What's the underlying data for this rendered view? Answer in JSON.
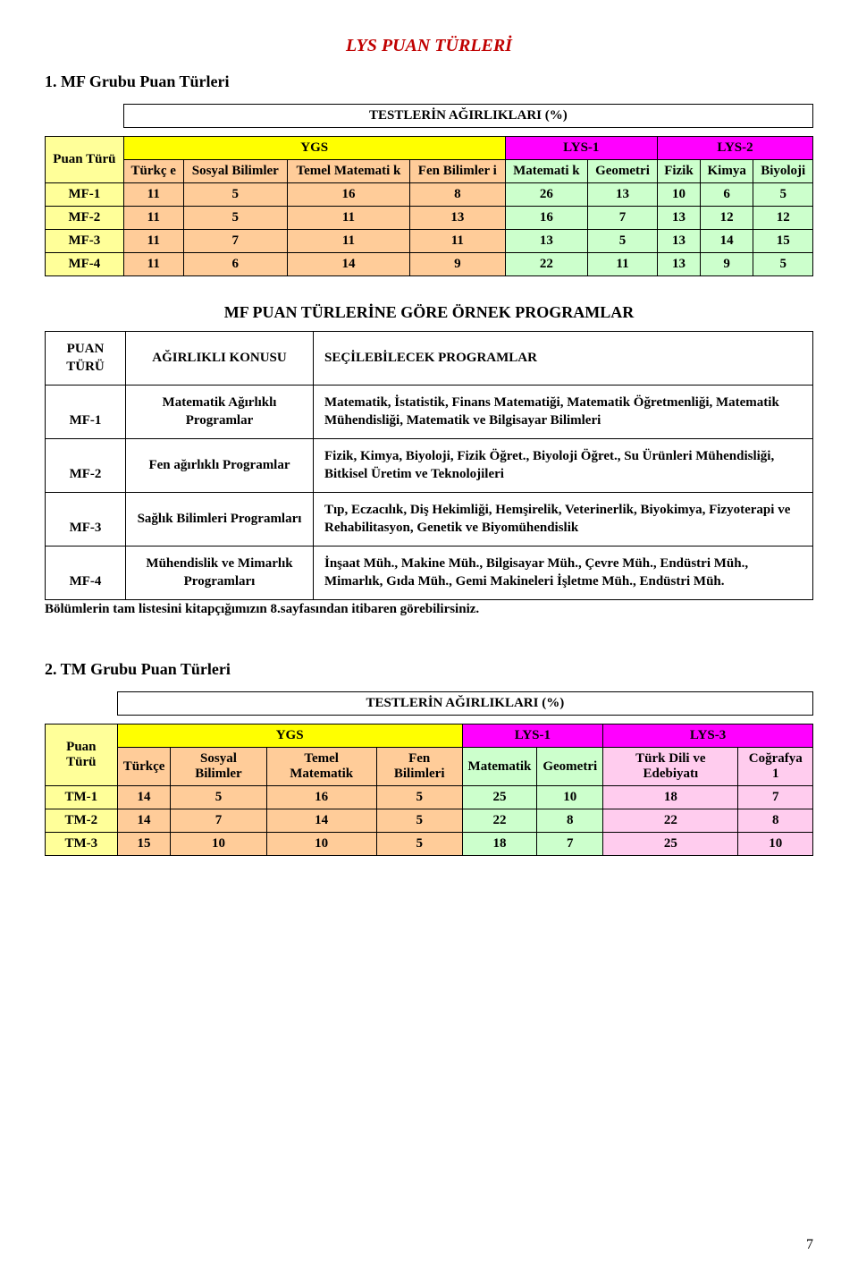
{
  "page_title": "LYS PUAN TÜRLERİ",
  "page_number": "7",
  "section1": {
    "title": "1. MF Grubu Puan Türleri",
    "weights_header": "TESTLERİN AĞIRLIKLARI (%)",
    "row_label": "Puan Türü",
    "groups": [
      {
        "label": "YGS",
        "bg": "#ffff00",
        "span": 4
      },
      {
        "label": "LYS-1",
        "bg": "#ff00ff",
        "span": 2
      },
      {
        "label": "LYS-2",
        "bg": "#ff00ff",
        "span": 3
      }
    ],
    "cols": [
      {
        "label": "Türkç e",
        "bg": "#ffcc99"
      },
      {
        "label": "Sosyal Bilimler",
        "bg": "#ffcc99"
      },
      {
        "label": "Temel Matemati k",
        "bg": "#ffcc99"
      },
      {
        "label": "Fen Bilimler i",
        "bg": "#ffcc99"
      },
      {
        "label": "Matemati k",
        "bg": "#ccffcc"
      },
      {
        "label": "Geometri",
        "bg": "#ccffcc"
      },
      {
        "label": "Fizik",
        "bg": "#ccffcc"
      },
      {
        "label": "Kimya",
        "bg": "#ccffcc"
      },
      {
        "label": "Biyoloji",
        "bg": "#ccffcc"
      }
    ],
    "label_bg": "#ffff99",
    "rows": [
      {
        "label": "MF-1",
        "values": [
          "11",
          "5",
          "16",
          "8",
          "26",
          "13",
          "10",
          "6",
          "5"
        ]
      },
      {
        "label": "MF-2",
        "values": [
          "11",
          "5",
          "11",
          "13",
          "16",
          "7",
          "13",
          "12",
          "12"
        ]
      },
      {
        "label": "MF-3",
        "values": [
          "11",
          "7",
          "11",
          "11",
          "13",
          "5",
          "13",
          "14",
          "15"
        ]
      },
      {
        "label": "MF-4",
        "values": [
          "11",
          "6",
          "14",
          "9",
          "22",
          "11",
          "13",
          "9",
          "5"
        ]
      }
    ],
    "row_bg_a": "#ffcc99",
    "row_bg_b": "#ccffcc"
  },
  "programs": {
    "title": "MF PUAN TÜRLERİNE GÖRE ÖRNEK PROGRAMLAR",
    "col1": "PUAN TÜRÜ",
    "col2": "AĞIRLIKLI KONUSU",
    "col3": "SEÇİLEBİLECEK PROGRAMLAR",
    "rows": [
      {
        "type": "MF-1",
        "subject": "Matematik Ağırlıklı Programlar",
        "programs": "Matematik, İstatistik, Finans Matematiği, Matematik Öğretmenliği, Matematik Mühendisliği, Matematik ve Bilgisayar Bilimleri"
      },
      {
        "type": "MF-2",
        "subject": "Fen ağırlıklı Programlar",
        "programs": "Fizik, Kimya, Biyoloji, Fizik Öğret., Biyoloji Öğret., Su Ürünleri Mühendisliği, Bitkisel Üretim ve Teknolojileri"
      },
      {
        "type": "MF-3",
        "subject": "Sağlık Bilimleri Programları",
        "programs": "Tıp, Eczacılık, Diş Hekimliği, Hemşirelik, Veterinerlik, Biyokimya, Fizyoterapi ve Rehabilitasyon, Genetik ve Biyomühendislik"
      },
      {
        "type": "MF-4",
        "subject": "Mühendislik ve Mimarlık Programları",
        "programs": "İnşaat Müh., Makine Müh., Bilgisayar Müh., Çevre Müh., Endüstri Müh., Mimarlık, Gıda Müh., Gemi Makineleri İşletme Müh., Endüstri Müh."
      }
    ],
    "note": "Bölümlerin tam listesini kitapçığımızın 8.sayfasından itibaren görebilirsiniz."
  },
  "section2": {
    "title": "2. TM Grubu Puan Türleri",
    "weights_header": "TESTLERİN AĞIRLIKLARI (%)",
    "row_label": "Puan Türü",
    "groups": [
      {
        "label": "YGS",
        "bg": "#ffff00",
        "span": 4
      },
      {
        "label": "LYS-1",
        "bg": "#ff00ff",
        "span": 2
      },
      {
        "label": "LYS-3",
        "bg": "#ff00ff",
        "span": 2
      }
    ],
    "cols": [
      {
        "label": "Türkçe",
        "bg": "#ffcc99"
      },
      {
        "label": "Sosyal Bilimler",
        "bg": "#ffcc99"
      },
      {
        "label": "Temel Matematik",
        "bg": "#ffcc99"
      },
      {
        "label": "Fen Bilimleri",
        "bg": "#ffcc99"
      },
      {
        "label": "Matematik",
        "bg": "#ccffcc"
      },
      {
        "label": "Geometri",
        "bg": "#ccffcc"
      },
      {
        "label": "Türk Dili ve Edebiyatı",
        "bg": "#ffccee"
      },
      {
        "label": "Coğrafya 1",
        "bg": "#ffccee"
      }
    ],
    "label_bg": "#ffff99",
    "rows": [
      {
        "label": "TM-1",
        "values": [
          "14",
          "5",
          "16",
          "5",
          "25",
          "10",
          "18",
          "7"
        ]
      },
      {
        "label": "TM-2",
        "values": [
          "14",
          "7",
          "14",
          "5",
          "22",
          "8",
          "22",
          "8"
        ]
      },
      {
        "label": "TM-3",
        "values": [
          "15",
          "10",
          "10",
          "5",
          "18",
          "7",
          "25",
          "10"
        ]
      }
    ],
    "row_bg_a": "#ffcc99",
    "row_bg_b": "#ccffcc",
    "row_bg_c": "#ffccee"
  }
}
